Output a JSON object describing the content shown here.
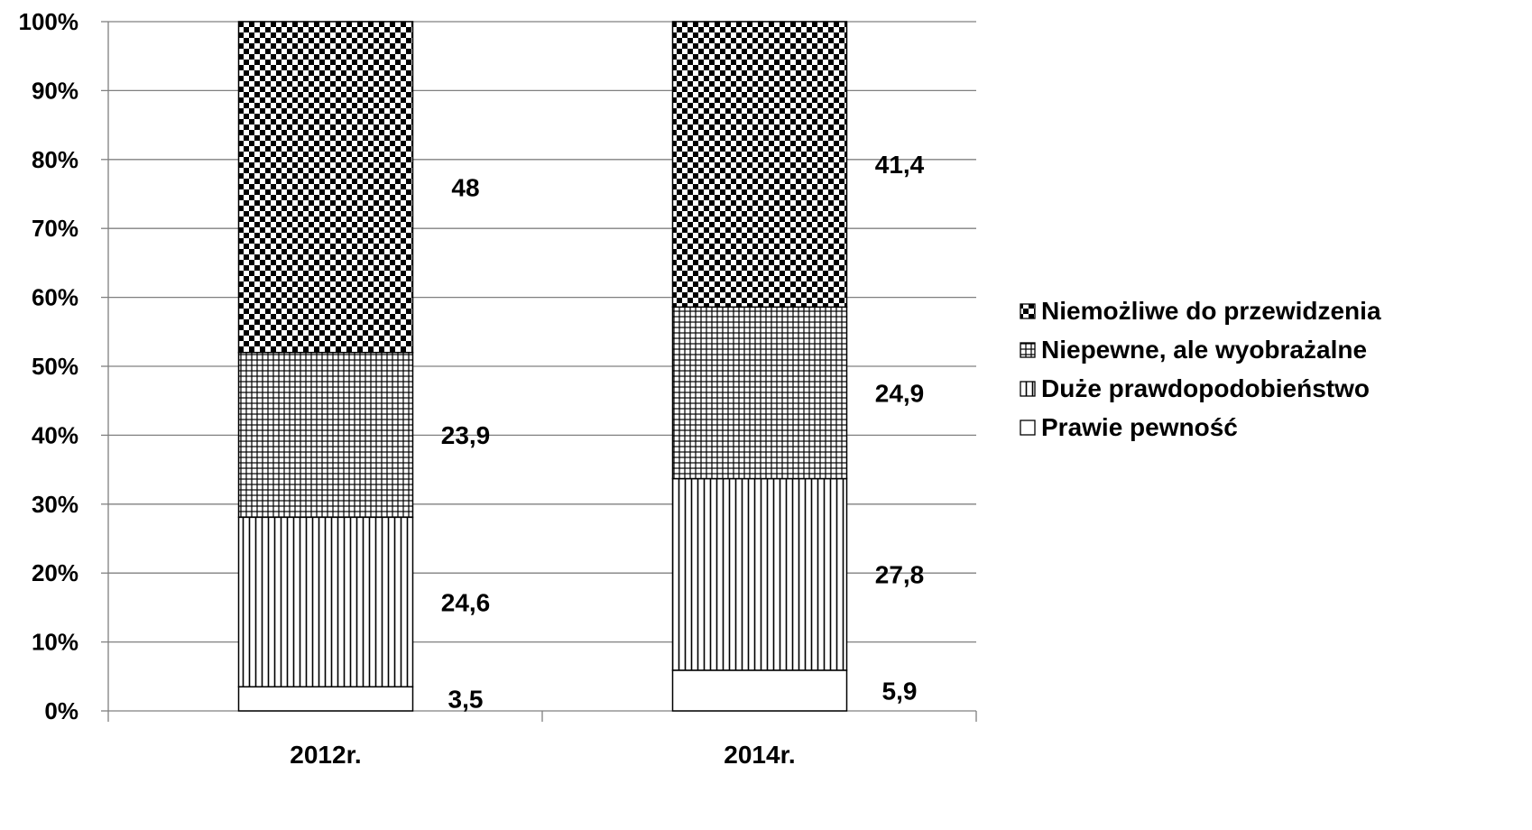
{
  "chart_data": {
    "type": "bar",
    "stacked": true,
    "percent_axis": true,
    "categories": [
      "2012r.",
      "2014r."
    ],
    "series": [
      {
        "name": "Prawie pewność",
        "pattern": "none",
        "values": [
          3.5,
          5.9
        ],
        "labels": [
          "3,5",
          "5,9"
        ]
      },
      {
        "name": "Duże prawdopodobieństwo",
        "pattern": "vertical-lines",
        "values": [
          24.6,
          27.8
        ],
        "labels": [
          "24,6",
          "27,8"
        ]
      },
      {
        "name": "Niepewne, ale wyobrażalne",
        "pattern": "grid",
        "values": [
          23.9,
          24.9
        ],
        "labels": [
          "23,9",
          "24,9"
        ]
      },
      {
        "name": "Niemożliwe do przewidzenia",
        "pattern": "checkerboard",
        "values": [
          48,
          41.4
        ],
        "labels": [
          "48",
          "41,4"
        ]
      }
    ],
    "legend_order": [
      "Niemożliwe do przewidzenia",
      "Niepewne, ale wyobrażalne",
      "Duże prawdopodobieństwo",
      "Prawie pewność"
    ],
    "y_ticks": [
      "0%",
      "10%",
      "20%",
      "30%",
      "40%",
      "50%",
      "60%",
      "70%",
      "80%",
      "90%",
      "100%"
    ],
    "ylim": [
      0,
      100
    ],
    "grid": true,
    "legend_position": "right",
    "colors": {
      "stroke": "#000000",
      "grid": "#808080",
      "fill": "#ffffff"
    }
  }
}
